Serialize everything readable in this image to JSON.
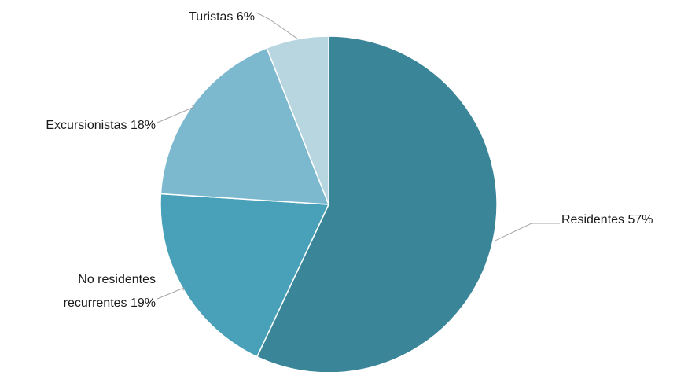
{
  "chart_data": {
    "type": "pie",
    "title": "",
    "start_angle_deg": 0,
    "direction": "clockwise",
    "slices": [
      {
        "label_lines": [
          "Residentes  57%"
        ],
        "value": 57,
        "color": "#3b8599"
      },
      {
        "label_lines": [
          "No residentes",
          "recurrentes 19%"
        ],
        "value": 19,
        "color": "#48a1b8"
      },
      {
        "label_lines": [
          "Excursionistas 18%"
        ],
        "value": 18,
        "color": "#7cb9cf"
      },
      {
        "label_lines": [
          "Turistas 6%"
        ],
        "value": 6,
        "color": "#b8d6e0"
      }
    ]
  }
}
